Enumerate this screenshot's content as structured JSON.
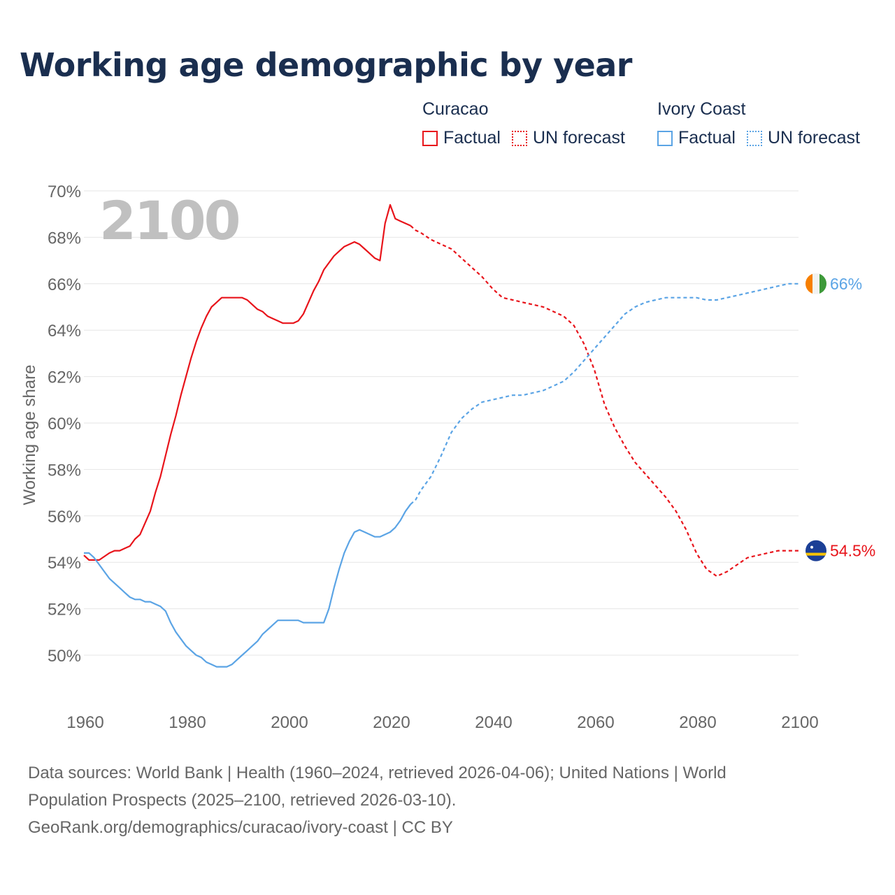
{
  "title": "Working age demographic by year",
  "legend": {
    "groups": [
      {
        "name": "Curacao",
        "color": "#e8141b",
        "factual_label": "Factual",
        "forecast_label": "UN forecast"
      },
      {
        "name": "Ivory Coast",
        "color": "#5ba4e5",
        "factual_label": "Factual",
        "forecast_label": "UN forecast"
      }
    ]
  },
  "footer": {
    "line1": "Data sources: World Bank | Health (1960–2024, retrieved 2026-04-06); United Nations | World",
    "line2": "Population Prospects (2025–2100, retrieved 2026-03-10).",
    "line3": "GeoRank.org/demographics/curacao/ivory-coast | CC BY"
  },
  "colors": {
    "curacao": "#e8141b",
    "ivory_coast": "#5ba4e5",
    "grid": "#e6e6e6",
    "axis_text": "#666666",
    "year_watermark": "#c0c0c0"
  },
  "chart_data": {
    "type": "line",
    "title": "Working age demographic by year",
    "xlabel": "",
    "ylabel": "Working age share",
    "xlim": [
      1960,
      2100
    ],
    "ylim": [
      48,
      70
    ],
    "x_ticks": [
      1960,
      1980,
      2000,
      2020,
      2040,
      2060,
      2080,
      2100
    ],
    "y_ticks": [
      50,
      52,
      54,
      56,
      58,
      60,
      62,
      64,
      66,
      68,
      70
    ],
    "y_tick_labels": [
      "50%",
      "52%",
      "54%",
      "56%",
      "58%",
      "60%",
      "62%",
      "64%",
      "66%",
      "68%",
      "70%"
    ],
    "current_year_label": "2100",
    "forecast_start": 2024,
    "series": [
      {
        "name": "Curacao",
        "color": "#e8141b",
        "end_label": "54.5%",
        "flag_icon": "curacao-flag-icon",
        "points": [
          [
            1960,
            54.3
          ],
          [
            1961,
            54.1
          ],
          [
            1963,
            54.1
          ],
          [
            1965,
            54.4
          ],
          [
            1966,
            54.5
          ],
          [
            1967,
            54.5
          ],
          [
            1968,
            54.6
          ],
          [
            1969,
            54.7
          ],
          [
            1970,
            55.0
          ],
          [
            1971,
            55.2
          ],
          [
            1972,
            55.7
          ],
          [
            1973,
            56.2
          ],
          [
            1974,
            57.0
          ],
          [
            1975,
            57.7
          ],
          [
            1976,
            58.6
          ],
          [
            1977,
            59.5
          ],
          [
            1978,
            60.3
          ],
          [
            1979,
            61.2
          ],
          [
            1980,
            62.0
          ],
          [
            1981,
            62.8
          ],
          [
            1982,
            63.5
          ],
          [
            1983,
            64.1
          ],
          [
            1984,
            64.6
          ],
          [
            1985,
            65.0
          ],
          [
            1986,
            65.2
          ],
          [
            1987,
            65.4
          ],
          [
            1988,
            65.4
          ],
          [
            1989,
            65.4
          ],
          [
            1990,
            65.4
          ],
          [
            1991,
            65.4
          ],
          [
            1992,
            65.3
          ],
          [
            1993,
            65.1
          ],
          [
            1994,
            64.9
          ],
          [
            1995,
            64.8
          ],
          [
            1996,
            64.6
          ],
          [
            1997,
            64.5
          ],
          [
            1998,
            64.4
          ],
          [
            1999,
            64.3
          ],
          [
            2001,
            64.3
          ],
          [
            2002,
            64.4
          ],
          [
            2003,
            64.7
          ],
          [
            2004,
            65.2
          ],
          [
            2005,
            65.7
          ],
          [
            2006,
            66.1
          ],
          [
            2007,
            66.6
          ],
          [
            2008,
            66.9
          ],
          [
            2009,
            67.2
          ],
          [
            2010,
            67.4
          ],
          [
            2011,
            67.6
          ],
          [
            2012,
            67.7
          ],
          [
            2013,
            67.8
          ],
          [
            2014,
            67.7
          ],
          [
            2015,
            67.5
          ],
          [
            2016,
            67.3
          ],
          [
            2017,
            67.1
          ],
          [
            2018,
            67.0
          ],
          [
            2019,
            68.6
          ],
          [
            2020,
            69.4
          ],
          [
            2021,
            68.8
          ],
          [
            2022,
            68.7
          ],
          [
            2023,
            68.6
          ],
          [
            2024,
            68.5
          ],
          [
            2025,
            68.3
          ],
          [
            2026,
            68.2
          ],
          [
            2028,
            67.9
          ],
          [
            2030,
            67.7
          ],
          [
            2032,
            67.5
          ],
          [
            2034,
            67.1
          ],
          [
            2036,
            66.7
          ],
          [
            2038,
            66.3
          ],
          [
            2040,
            65.8
          ],
          [
            2042,
            65.4
          ],
          [
            2044,
            65.3
          ],
          [
            2046,
            65.2
          ],
          [
            2048,
            65.1
          ],
          [
            2050,
            65.0
          ],
          [
            2052,
            64.8
          ],
          [
            2054,
            64.6
          ],
          [
            2056,
            64.2
          ],
          [
            2058,
            63.4
          ],
          [
            2060,
            62.3
          ],
          [
            2062,
            60.8
          ],
          [
            2064,
            59.8
          ],
          [
            2066,
            59.0
          ],
          [
            2068,
            58.3
          ],
          [
            2070,
            57.8
          ],
          [
            2072,
            57.3
          ],
          [
            2074,
            56.8
          ],
          [
            2076,
            56.2
          ],
          [
            2078,
            55.4
          ],
          [
            2080,
            54.4
          ],
          [
            2082,
            53.7
          ],
          [
            2084,
            53.4
          ],
          [
            2086,
            53.6
          ],
          [
            2088,
            53.9
          ],
          [
            2090,
            54.2
          ],
          [
            2092,
            54.3
          ],
          [
            2094,
            54.4
          ],
          [
            2096,
            54.5
          ],
          [
            2098,
            54.5
          ],
          [
            2100,
            54.5
          ]
        ]
      },
      {
        "name": "Ivory Coast",
        "color": "#5ba4e5",
        "end_label": "66%",
        "flag_icon": "ivory-coast-flag-icon",
        "points": [
          [
            1960,
            54.4
          ],
          [
            1961,
            54.4
          ],
          [
            1962,
            54.2
          ],
          [
            1963,
            53.9
          ],
          [
            1964,
            53.6
          ],
          [
            1965,
            53.3
          ],
          [
            1966,
            53.1
          ],
          [
            1967,
            52.9
          ],
          [
            1968,
            52.7
          ],
          [
            1969,
            52.5
          ],
          [
            1970,
            52.4
          ],
          [
            1971,
            52.4
          ],
          [
            1972,
            52.3
          ],
          [
            1973,
            52.3
          ],
          [
            1974,
            52.2
          ],
          [
            1975,
            52.1
          ],
          [
            1976,
            51.9
          ],
          [
            1977,
            51.4
          ],
          [
            1978,
            51.0
          ],
          [
            1979,
            50.7
          ],
          [
            1980,
            50.4
          ],
          [
            1981,
            50.2
          ],
          [
            1982,
            50.0
          ],
          [
            1983,
            49.9
          ],
          [
            1984,
            49.7
          ],
          [
            1985,
            49.6
          ],
          [
            1986,
            49.5
          ],
          [
            1988,
            49.5
          ],
          [
            1989,
            49.6
          ],
          [
            1990,
            49.8
          ],
          [
            1991,
            50.0
          ],
          [
            1992,
            50.2
          ],
          [
            1993,
            50.4
          ],
          [
            1994,
            50.6
          ],
          [
            1995,
            50.9
          ],
          [
            1996,
            51.1
          ],
          [
            1997,
            51.3
          ],
          [
            1998,
            51.5
          ],
          [
            2002,
            51.5
          ],
          [
            2003,
            51.4
          ],
          [
            2007,
            51.4
          ],
          [
            2008,
            52.0
          ],
          [
            2009,
            52.9
          ],
          [
            2010,
            53.7
          ],
          [
            2011,
            54.4
          ],
          [
            2012,
            54.9
          ],
          [
            2013,
            55.3
          ],
          [
            2014,
            55.4
          ],
          [
            2015,
            55.3
          ],
          [
            2016,
            55.2
          ],
          [
            2017,
            55.1
          ],
          [
            2018,
            55.1
          ],
          [
            2019,
            55.2
          ],
          [
            2020,
            55.3
          ],
          [
            2021,
            55.5
          ],
          [
            2022,
            55.8
          ],
          [
            2023,
            56.2
          ],
          [
            2024,
            56.5
          ],
          [
            2025,
            56.7
          ],
          [
            2026,
            57.1
          ],
          [
            2028,
            57.7
          ],
          [
            2030,
            58.6
          ],
          [
            2032,
            59.6
          ],
          [
            2034,
            60.2
          ],
          [
            2036,
            60.6
          ],
          [
            2038,
            60.9
          ],
          [
            2040,
            61.0
          ],
          [
            2042,
            61.1
          ],
          [
            2044,
            61.2
          ],
          [
            2046,
            61.2
          ],
          [
            2048,
            61.3
          ],
          [
            2050,
            61.4
          ],
          [
            2052,
            61.6
          ],
          [
            2054,
            61.8
          ],
          [
            2056,
            62.2
          ],
          [
            2058,
            62.7
          ],
          [
            2060,
            63.2
          ],
          [
            2062,
            63.7
          ],
          [
            2064,
            64.2
          ],
          [
            2066,
            64.7
          ],
          [
            2068,
            65.0
          ],
          [
            2070,
            65.2
          ],
          [
            2072,
            65.3
          ],
          [
            2074,
            65.4
          ],
          [
            2076,
            65.4
          ],
          [
            2078,
            65.4
          ],
          [
            2080,
            65.4
          ],
          [
            2082,
            65.3
          ],
          [
            2084,
            65.3
          ],
          [
            2086,
            65.4
          ],
          [
            2088,
            65.5
          ],
          [
            2090,
            65.6
          ],
          [
            2092,
            65.7
          ],
          [
            2094,
            65.8
          ],
          [
            2096,
            65.9
          ],
          [
            2098,
            66.0
          ],
          [
            2100,
            66.0
          ]
        ]
      }
    ]
  }
}
